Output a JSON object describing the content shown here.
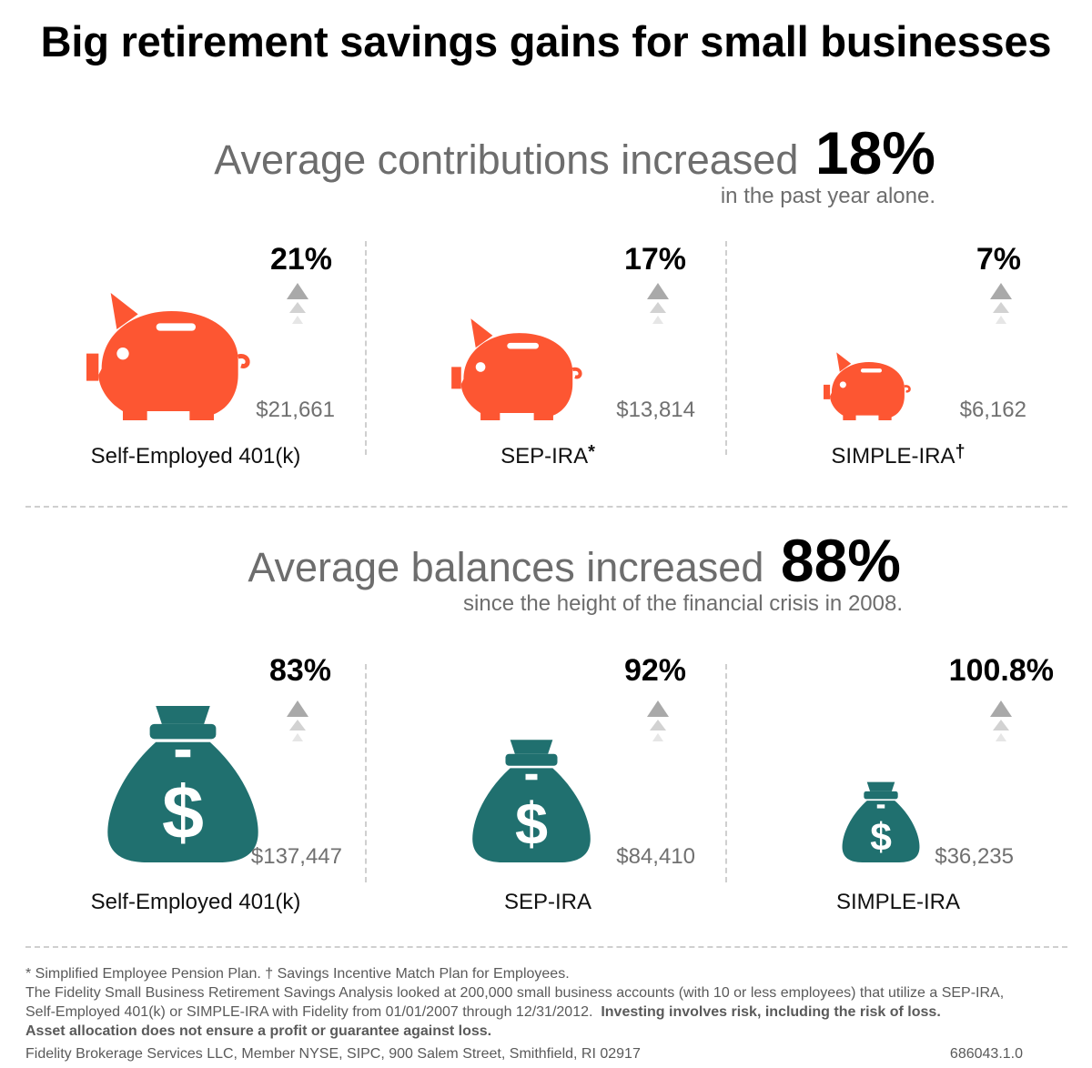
{
  "title": "Big retirement savings gains for small businesses",
  "colors": {
    "piggy": "#fd5632",
    "bag": "#20706f",
    "arrow": "#b3b3b3",
    "divider": "#cfcfcf"
  },
  "icons": {
    "contribution": "piggy-bank-icon",
    "balance": "money-bag-icon",
    "trend": "up-arrow-icon"
  },
  "chart_data": [
    {
      "type": "bar",
      "title": "Average contributions increased",
      "headline_value": "18%",
      "subtitle": "in the past year alone.",
      "categories": [
        "Self-Employed 401(k)",
        "SEP-IRA",
        "SIMPLE-IRA"
      ],
      "category_marks": [
        "",
        "*",
        "†"
      ],
      "values": [
        21661,
        13814,
        6162
      ],
      "value_labels": [
        "$21,661",
        "$13,814",
        "$6,162"
      ],
      "pct_changes": [
        21,
        17,
        7
      ],
      "pct_labels": [
        "21%",
        "17%",
        "7%"
      ]
    },
    {
      "type": "bar",
      "title": "Average balances increased",
      "headline_value": "88%",
      "subtitle": "since the height of the financial crisis in 2008.",
      "categories": [
        "Self-Employed 401(k)",
        "SEP-IRA",
        "SIMPLE-IRA"
      ],
      "category_marks": [
        "",
        "",
        ""
      ],
      "values": [
        137447,
        84410,
        36235
      ],
      "value_labels": [
        "$137,447",
        "$84,410",
        "$36,235"
      ],
      "pct_changes": [
        83,
        92,
        100.8
      ],
      "pct_labels": [
        "83%",
        "92%",
        "100.8%"
      ]
    }
  ],
  "footnotes": {
    "line1": "* Simplified Employee Pension Plan.  † Savings Incentive Match Plan for Employees.",
    "line2": "The Fidelity Small Business Retirement Savings Analysis looked at 200,000 small business accounts (with 10 or less employees) that utilize a SEP-IRA,",
    "line3": "Self-Employed 401(k) or SIMPLE-IRA with Fidelity from 01/01/2007 through 12/31/2012.",
    "risk": "Investing involves risk, including the risk of loss.",
    "line4": "Asset allocation does not ensure a profit or guarantee against loss."
  },
  "footer": {
    "company": "Fidelity Brokerage Services LLC, Member NYSE, SIPC, 900 Salem Street, Smithfield, RI 02917",
    "code": "686043.1.0"
  }
}
